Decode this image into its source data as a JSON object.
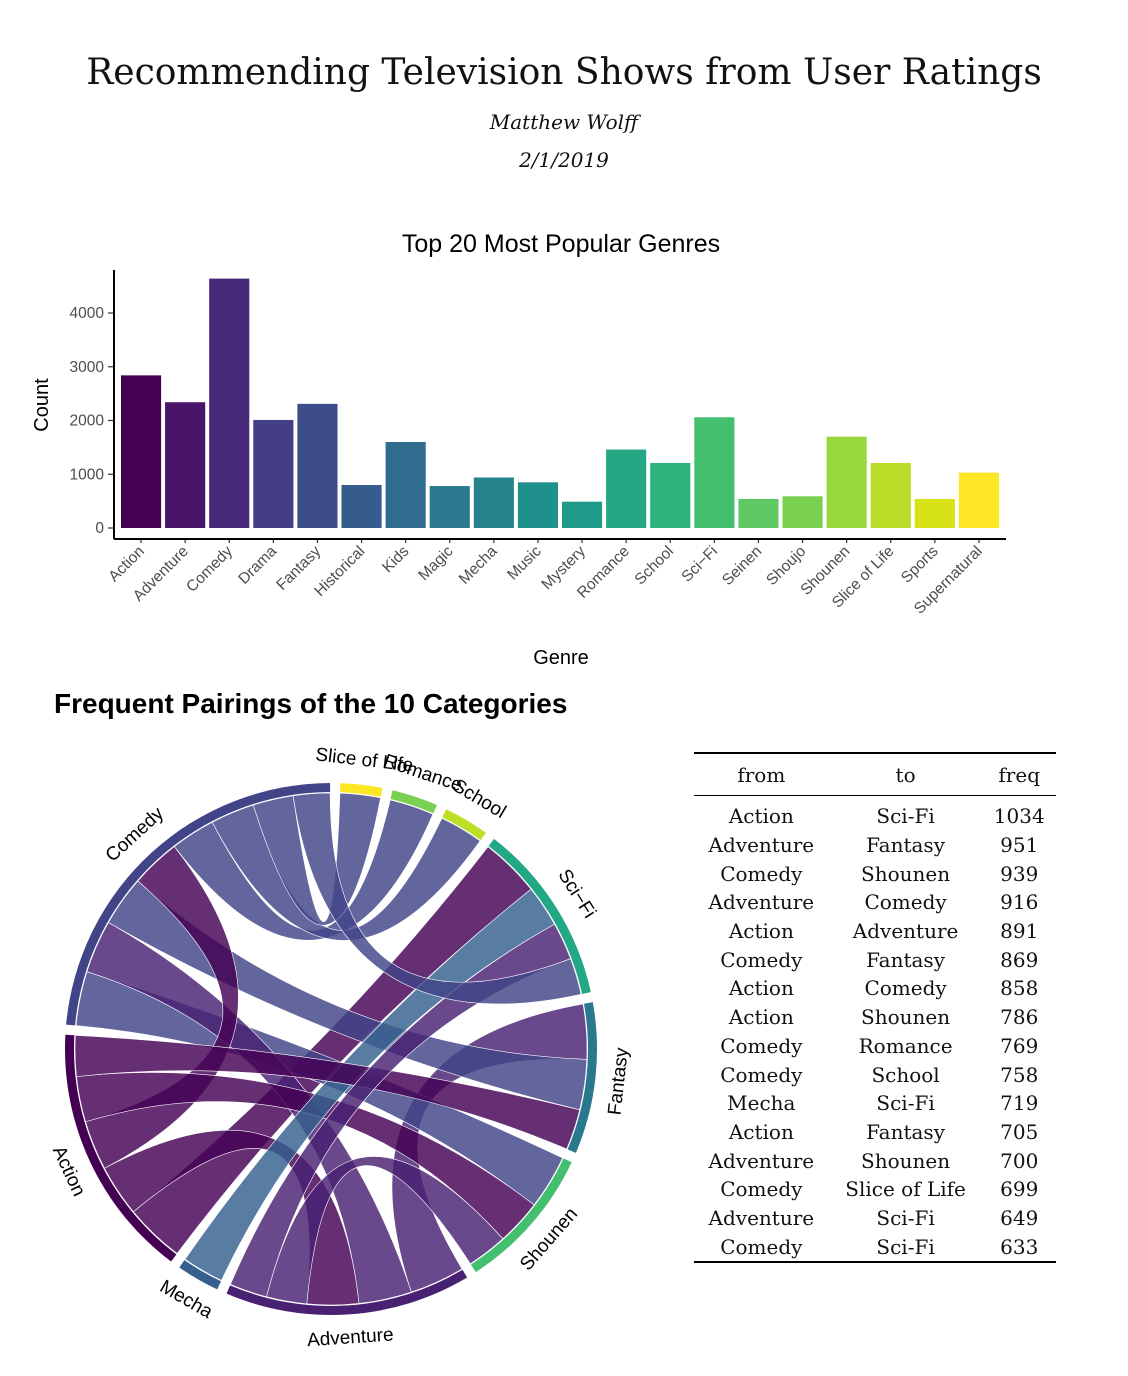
{
  "document": {
    "title": "Recommending Television Shows from User Ratings",
    "author": "Matthew Wolff",
    "date": "2/1/2019"
  },
  "chart_data": [
    {
      "type": "bar",
      "title": "Top 20 Most Popular Genres",
      "xlabel": "Genre",
      "ylabel": "Count",
      "ylim": [
        0,
        4800
      ],
      "yticks": [
        0,
        1000,
        2000,
        3000,
        4000
      ],
      "categories": [
        "Action",
        "Adventure",
        "Comedy",
        "Drama",
        "Fantasy",
        "Historical",
        "Kids",
        "Magic",
        "Mecha",
        "Music",
        "Mystery",
        "Romance",
        "School",
        "Sci−Fi",
        "Seinen",
        "Shoujo",
        "Shounen",
        "Slice of Life",
        "Sports",
        "Supernatural"
      ],
      "values": [
        2840,
        2340,
        4640,
        2010,
        2310,
        800,
        1600,
        780,
        940,
        850,
        490,
        1460,
        1210,
        2060,
        540,
        590,
        1700,
        1210,
        540,
        1030
      ],
      "colors": [
        "#440154",
        "#481a6c",
        "#472f7d",
        "#414487",
        "#39568c",
        "#31688e",
        "#2a788e",
        "#23888e",
        "#1f988b",
        "#22a884",
        "#35b779",
        "#54c568",
        "#7ad151",
        "#a5db36",
        "#d2e21b",
        "#fde725"
      ],
      "bar_colors": [
        "#440154",
        "#481467",
        "#472a7a",
        "#433e85",
        "#3d4d8a",
        "#365c8d",
        "#2f6c8e",
        "#2a788e",
        "#25848e",
        "#20908d",
        "#1e9c89",
        "#24a884",
        "#2eb37c",
        "#44bf70",
        "#5ec962",
        "#7ad151",
        "#99d83c",
        "#bade28",
        "#d8e219",
        "#fde725"
      ],
      "grid": false,
      "legend": "none"
    },
    {
      "type": "chord",
      "title": "Frequent Pairings of the 10 Categories",
      "sectors": [
        {
          "name": "Slice of Life",
          "color": "#fde725"
        },
        {
          "name": "Romance",
          "color": "#7ad151"
        },
        {
          "name": "School",
          "color": "#bddf26"
        },
        {
          "name": "Sci−Fi",
          "color": "#22a884"
        },
        {
          "name": "Fantasy",
          "color": "#2a788e"
        },
        {
          "name": "Shounen",
          "color": "#44bf70"
        },
        {
          "name": "Adventure",
          "color": "#482173"
        },
        {
          "name": "Mecha",
          "color": "#355f8d"
        },
        {
          "name": "Action",
          "color": "#440154"
        },
        {
          "name": "Comedy",
          "color": "#414487"
        }
      ],
      "links": [
        {
          "from": "Action",
          "to": "Sci-Fi",
          "freq": 1034
        },
        {
          "from": "Adventure",
          "to": "Fantasy",
          "freq": 951
        },
        {
          "from": "Comedy",
          "to": "Shounen",
          "freq": 939
        },
        {
          "from": "Adventure",
          "to": "Comedy",
          "freq": 916
        },
        {
          "from": "Action",
          "to": "Adventure",
          "freq": 891
        },
        {
          "from": "Comedy",
          "to": "Fantasy",
          "freq": 869
        },
        {
          "from": "Action",
          "to": "Comedy",
          "freq": 858
        },
        {
          "from": "Action",
          "to": "Shounen",
          "freq": 786
        },
        {
          "from": "Comedy",
          "to": "Romance",
          "freq": 769
        },
        {
          "from": "Comedy",
          "to": "School",
          "freq": 758
        },
        {
          "from": "Mecha",
          "to": "Sci-Fi",
          "freq": 719
        },
        {
          "from": "Action",
          "to": "Fantasy",
          "freq": 705
        },
        {
          "from": "Adventure",
          "to": "Shounen",
          "freq": 700
        },
        {
          "from": "Comedy",
          "to": "Slice of Life",
          "freq": 699
        },
        {
          "from": "Adventure",
          "to": "Sci-Fi",
          "freq": 649
        },
        {
          "from": "Comedy",
          "to": "Sci-Fi",
          "freq": 633
        }
      ]
    },
    {
      "type": "table",
      "columns": [
        "from",
        "to",
        "freq"
      ],
      "rows": [
        [
          "Action",
          "Sci-Fi",
          "1034"
        ],
        [
          "Adventure",
          "Fantasy",
          "951"
        ],
        [
          "Comedy",
          "Shounen",
          "939"
        ],
        [
          "Adventure",
          "Comedy",
          "916"
        ],
        [
          "Action",
          "Adventure",
          "891"
        ],
        [
          "Comedy",
          "Fantasy",
          "869"
        ],
        [
          "Action",
          "Comedy",
          "858"
        ],
        [
          "Action",
          "Shounen",
          "786"
        ],
        [
          "Comedy",
          "Romance",
          "769"
        ],
        [
          "Comedy",
          "School",
          "758"
        ],
        [
          "Mecha",
          "Sci-Fi",
          "719"
        ],
        [
          "Action",
          "Fantasy",
          "705"
        ],
        [
          "Adventure",
          "Shounen",
          "700"
        ],
        [
          "Comedy",
          "Slice of Life",
          "699"
        ],
        [
          "Adventure",
          "Sci-Fi",
          "649"
        ],
        [
          "Comedy",
          "Sci-Fi",
          "633"
        ]
      ]
    }
  ]
}
